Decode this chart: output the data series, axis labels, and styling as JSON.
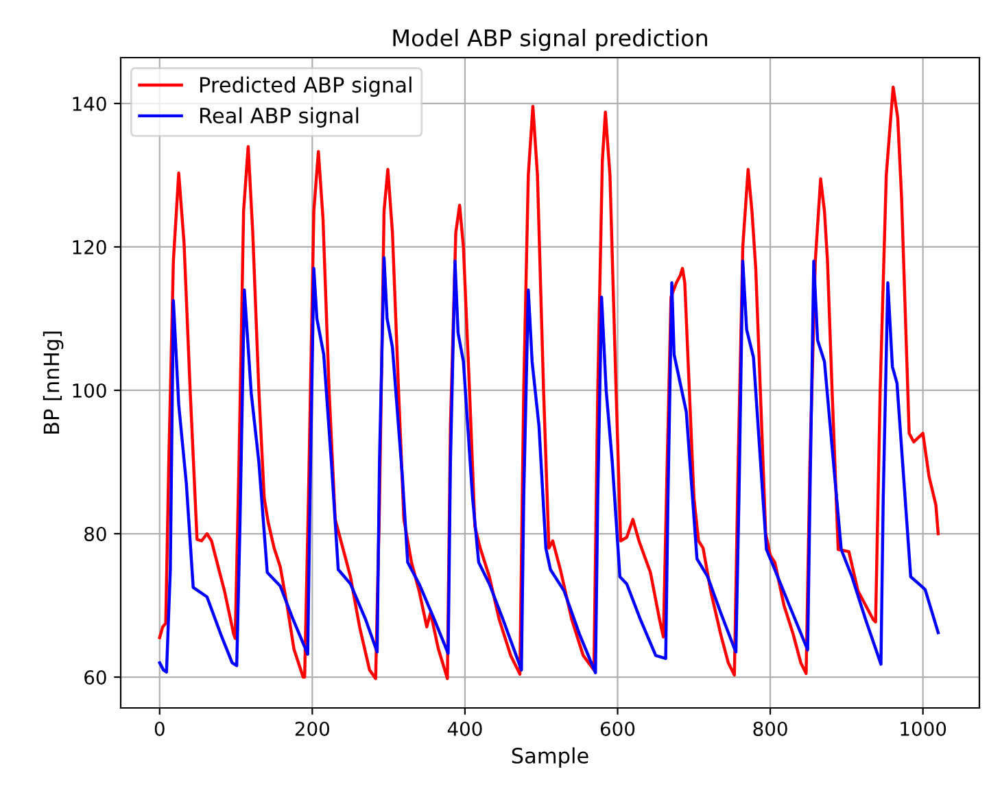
{
  "chart_data": {
    "type": "line",
    "title": "Model ABP signal prediction",
    "xlabel": "Sample",
    "ylabel": "BP [nnHg]",
    "xlim": [
      -51,
      1074
    ],
    "ylim": [
      55.7,
      146.4
    ],
    "xticks": [
      0,
      200,
      400,
      600,
      800,
      1000
    ],
    "yticks": [
      60,
      80,
      100,
      120,
      140
    ],
    "grid": true,
    "legend": "top left",
    "marker": "none",
    "line_style": "solid",
    "series": [
      {
        "name": "Predicted ABP signal",
        "color": "#ff0000",
        "x": [
          0,
          4,
          8,
          12,
          18,
          25,
          32,
          40,
          49,
          55,
          62,
          68,
          74,
          85,
          97,
          99,
          104,
          110,
          116,
          122,
          130,
          137,
          142,
          150,
          158,
          167,
          176,
          188,
          190,
          195,
          202,
          208,
          214,
          222,
          230,
          240,
          250,
          262,
          275,
          283,
          288,
          294,
          299,
          305,
          313,
          320,
          330,
          340,
          350,
          355,
          365,
          377,
          381,
          388,
          393,
          398,
          406,
          413,
          420,
          432,
          445,
          460,
          472,
          477,
          483,
          489,
          495,
          503,
          510,
          515,
          525,
          540,
          555,
          569,
          574,
          580,
          584,
          590,
          598,
          604,
          612,
          620,
          628,
          643,
          655,
          660,
          665,
          670,
          677,
          682,
          685,
          688,
          694,
          700,
          706,
          712,
          722,
          735,
          745,
          753,
          758,
          764,
          771,
          776,
          781,
          787,
          794,
          800,
          806,
          818,
          830,
          840,
          847,
          852,
          859,
          866,
          871,
          875,
          881,
          889,
          903,
          915,
          925,
          935,
          938,
          944,
          952,
          961,
          967,
          972,
          982,
          988,
          1000,
          1008,
          1017,
          1020
        ],
        "values": [
          65.5,
          67,
          67.5,
          90,
          118,
          130.3,
          120.5,
          100,
          79.2,
          79,
          80,
          79,
          76.5,
          72,
          66,
          65.4,
          90,
          125,
          134,
          122,
          100,
          85,
          81.7,
          78,
          75.4,
          70,
          63.9,
          60,
          60,
          85,
          125,
          133.3,
          124,
          100,
          82,
          78,
          74,
          67,
          61,
          59.8,
          84,
          125,
          130.8,
          122,
          100,
          82,
          76,
          72,
          67,
          69,
          64,
          59.8,
          95,
          122,
          125.8,
          120,
          100,
          81,
          78,
          74,
          68,
          63,
          60.4,
          100,
          130,
          139.6,
          130,
          100,
          78,
          79,
          75,
          68,
          63,
          61,
          100,
          132,
          138.8,
          130,
          100,
          79,
          79.5,
          82,
          79,
          74.6,
          68,
          65.6,
          90,
          113,
          115,
          116,
          117,
          115,
          100,
          85,
          79,
          78,
          72,
          66,
          62,
          60.3,
          90,
          120,
          130.8,
          125,
          117,
          100,
          80,
          77,
          76,
          70,
          66,
          62,
          60.5,
          90,
          118,
          129.5,
          125,
          118,
          100,
          77.8,
          77.5,
          72,
          70,
          68,
          67.7,
          100,
          130,
          142.3,
          138,
          127,
          94,
          92.8,
          94,
          88,
          84,
          80
        ]
      },
      {
        "name": "Real ABP signal",
        "color": "#0000ff",
        "x": [
          0,
          5,
          9,
          14,
          18,
          25,
          35,
          44,
          62,
          80,
          95,
          101,
          105,
          111,
          120,
          130,
          141,
          158,
          175,
          194,
          197,
          202,
          206,
          215,
          225,
          234,
          250,
          270,
          285,
          288,
          294,
          298,
          305,
          318,
          325,
          340,
          360,
          378,
          381,
          387,
          391,
          398,
          410,
          418,
          432,
          450,
          474,
          477,
          483,
          488,
          497,
          506,
          512,
          530,
          550,
          571,
          574,
          579,
          585,
          593,
          603,
          612,
          630,
          650,
          663,
          666,
          671,
          674,
          690,
          704,
          718,
          735,
          753,
          755,
          759,
          764,
          769,
          778,
          795,
          806,
          825,
          849,
          852,
          857,
          862,
          871,
          893,
          907,
          925,
          945,
          948,
          954,
          960,
          966,
          984,
          998,
          1003,
          1020
        ],
        "values": [
          62,
          61,
          60.7,
          75,
          112.5,
          98,
          87,
          72.5,
          71.2,
          66,
          62,
          61.6,
          80,
          114,
          99.6,
          90,
          74.6,
          72.7,
          68,
          63.2,
          85,
          117,
          110,
          105,
          90,
          75,
          73,
          68,
          63.5,
          90,
          118.5,
          110,
          106,
          88,
          76,
          73,
          68,
          63.3,
          90,
          118,
          108,
          104,
          85,
          76,
          73,
          68,
          61,
          85,
          114,
          104,
          95,
          78,
          75,
          72,
          66,
          60.6,
          85,
          113,
          100,
          90,
          74,
          73,
          68,
          63,
          62.6,
          85,
          115,
          105,
          97,
          76.5,
          74,
          69,
          64,
          63.5,
          85,
          118,
          108.5,
          104.6,
          77.8,
          75,
          70,
          63.8,
          85,
          118,
          107,
          104,
          77.8,
          74,
          68,
          61.8,
          85,
          115,
          103.3,
          101,
          74,
          72.7,
          72.2,
          66.2
        ]
      }
    ]
  }
}
